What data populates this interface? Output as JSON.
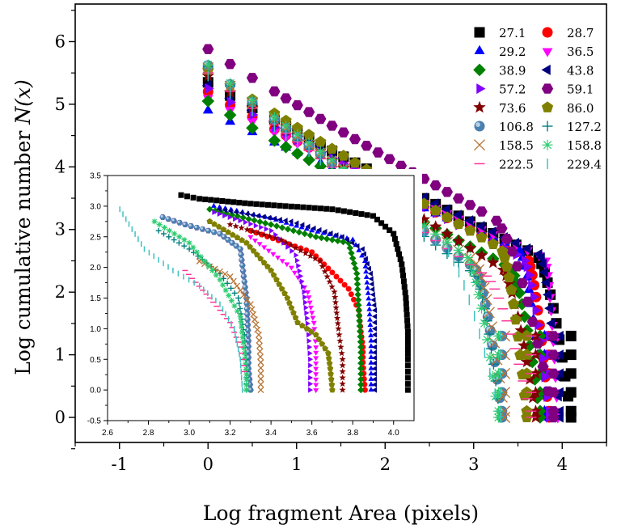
{
  "chart_data": [
    {
      "type": "scatter",
      "panel": "main",
      "title": "",
      "xlabel": "Log fragment Area (pixels)",
      "ylabel_prefix": "Log cumulative number ",
      "ylabel_math": "N(x)",
      "xlim": [
        -1.5,
        4.5
      ],
      "ylim": [
        -0.4,
        6.6
      ],
      "xticks": [
        -1,
        0,
        1,
        2,
        3,
        4
      ],
      "yticks": [
        0,
        1,
        2,
        3,
        4,
        5,
        6
      ],
      "xtick_labels": [
        "-1",
        "0",
        "1",
        "2",
        "3",
        "4"
      ],
      "ytick_labels": [
        "0",
        "1",
        "2",
        "3",
        "4",
        "5",
        "6"
      ],
      "grid": false,
      "legend_position": "top-right",
      "series": [
        {
          "name": "27.1",
          "marker": "square",
          "color": "#000000",
          "start_y": 5.35,
          "x_knee": 3.7,
          "y_knee": 2.6,
          "x_end": 4.1
        },
        {
          "name": "28.7",
          "marker": "circle",
          "color": "#ff0000",
          "start_y": 5.2,
          "x_knee": 3.6,
          "y_knee": 2.55,
          "x_end": 3.85
        },
        {
          "name": "29.2",
          "marker": "triangle-up",
          "color": "#0000ff",
          "start_y": 4.9,
          "x_knee": 3.5,
          "y_knee": 2.7,
          "x_end": 3.8
        },
        {
          "name": "36.5",
          "marker": "triangle-down",
          "color": "#ff00ff",
          "start_y": 5.1,
          "x_knee": 3.8,
          "y_knee": 2.55,
          "x_end": 3.95
        },
        {
          "name": "38.9",
          "marker": "diamond",
          "color": "#008000",
          "start_y": 5.05,
          "x_knee": 3.4,
          "y_knee": 2.4,
          "x_end": 3.75
        },
        {
          "name": "43.8",
          "marker": "triangle-left",
          "color": "#000080",
          "start_y": 5.3,
          "x_knee": 3.75,
          "y_knee": 2.6,
          "x_end": 3.98
        },
        {
          "name": "57.2",
          "marker": "triangle-right",
          "color": "#8000ff",
          "start_y": 5.25,
          "x_knee": 3.55,
          "y_knee": 2.55,
          "x_end": 3.85
        },
        {
          "name": "59.1",
          "marker": "hexagon",
          "color": "#800080",
          "start_y": 5.88,
          "x_knee": 3.2,
          "y_knee": 3.2,
          "x_end": 3.9
        },
        {
          "name": "73.6",
          "marker": "star",
          "color": "#800000",
          "start_y": 5.45,
          "x_knee": 3.3,
          "y_knee": 2.4,
          "x_end": 3.7
        },
        {
          "name": "86.0",
          "marker": "pentagon",
          "color": "#808000",
          "start_y": 5.55,
          "x_knee": 3.3,
          "y_knee": 2.7,
          "x_end": 3.6
        },
        {
          "name": "106.8",
          "marker": "sphere",
          "color": "#4a7fb0",
          "start_y": 5.62,
          "x_knee": 3.0,
          "y_knee": 2.4,
          "x_end": 3.32
        },
        {
          "name": "127.2",
          "marker": "plus",
          "color": "#008080",
          "start_y": 5.6,
          "x_knee": 3.0,
          "y_knee": 2.3,
          "x_end": 3.3
        },
        {
          "name": "158.5",
          "marker": "cross",
          "color": "#b87333",
          "start_y": 5.58,
          "x_knee": 3.0,
          "y_knee": 2.5,
          "x_end": 3.35
        },
        {
          "name": "158.8",
          "marker": "asterisk",
          "color": "#2ecc71",
          "start_y": 5.63,
          "x_knee": 2.9,
          "y_knee": 2.6,
          "x_end": 3.28
        },
        {
          "name": "222.5",
          "marker": "hline",
          "color": "#ff3399",
          "start_y": 5.5,
          "x_knee": 3.1,
          "y_knee": 2.3,
          "x_end": 3.65
        },
        {
          "name": "229.4",
          "marker": "vline",
          "color": "#40c0c0",
          "start_y": 5.45,
          "x_knee": 2.6,
          "y_knee": 2.8,
          "x_end": 3.3
        }
      ]
    },
    {
      "type": "scatter",
      "panel": "inset",
      "title": "",
      "xlabel": "",
      "ylabel": "",
      "xlim": [
        2.6,
        4.1
      ],
      "ylim": [
        -0.5,
        3.5
      ],
      "xticks": [
        2.6,
        2.8,
        3.0,
        3.2,
        3.4,
        3.6,
        3.8,
        4.0
      ],
      "yticks": [
        -0.5,
        0.0,
        0.5,
        1.0,
        1.5,
        2.0,
        2.5,
        3.0,
        3.5
      ],
      "xtick_labels": [
        "2.6",
        "2.8",
        "3.0",
        "3.2",
        "3.4",
        "3.6",
        "3.8",
        "4.0"
      ],
      "ytick_labels": [
        "-0.5",
        "0.0",
        "0.5",
        "1.0",
        "1.5",
        "2.0",
        "2.5",
        "3.0",
        "3.5"
      ],
      "grid": false,
      "series": [
        {
          "name": "27.1",
          "points": [
            [
              2.96,
              3.18
            ],
            [
              3.05,
              3.12
            ],
            [
              3.3,
              3.04
            ],
            [
              3.7,
              2.95
            ],
            [
              3.9,
              2.84
            ],
            [
              4.0,
              2.55
            ],
            [
              4.04,
              2.05
            ],
            [
              4.06,
              1.5
            ],
            [
              4.07,
              0.95
            ],
            [
              4.07,
              0.5
            ],
            [
              4.07,
              0.0
            ]
          ]
        },
        {
          "name": "28.7",
          "points": [
            [
              3.3,
              2.6
            ],
            [
              3.6,
              2.25
            ],
            [
              3.78,
              1.65
            ],
            [
              3.83,
              1.3
            ],
            [
              3.84,
              0.95
            ],
            [
              3.85,
              0.7
            ],
            [
              3.85,
              0.45
            ],
            [
              3.86,
              0.0
            ]
          ]
        },
        {
          "name": "29.2",
          "points": [
            [
              3.12,
              3.0
            ],
            [
              3.4,
              2.8
            ],
            [
              3.6,
              2.6
            ],
            [
              3.8,
              2.45
            ],
            [
              3.86,
              2.1
            ],
            [
              3.88,
              1.4
            ],
            [
              3.89,
              0.8
            ],
            [
              3.89,
              0.35
            ],
            [
              3.89,
              0.0
            ]
          ]
        },
        {
          "name": "36.5",
          "points": [
            [
              3.3,
              2.5
            ],
            [
              3.5,
              2.0
            ],
            [
              3.58,
              1.6
            ],
            [
              3.61,
              1.1
            ],
            [
              3.62,
              0.7
            ],
            [
              3.62,
              0.35
            ],
            [
              3.62,
              0.0
            ]
          ]
        },
        {
          "name": "38.9",
          "points": [
            [
              3.1,
              2.95
            ],
            [
              3.4,
              2.7
            ],
            [
              3.62,
              2.5
            ],
            [
              3.78,
              2.4
            ],
            [
              3.82,
              1.9
            ],
            [
              3.83,
              1.3
            ],
            [
              3.84,
              0.7
            ],
            [
              3.84,
              0.35
            ],
            [
              3.84,
              0.0
            ]
          ]
        },
        {
          "name": "43.8",
          "points": [
            [
              3.15,
              2.95
            ],
            [
              3.5,
              2.75
            ],
            [
              3.75,
              2.5
            ],
            [
              3.85,
              2.3
            ],
            [
              3.89,
              1.9
            ],
            [
              3.91,
              1.3
            ],
            [
              3.91,
              0.7
            ],
            [
              3.91,
              0.0
            ]
          ]
        },
        {
          "name": "57.2",
          "points": [
            [
              3.12,
              2.9
            ],
            [
              3.4,
              2.6
            ],
            [
              3.52,
              2.2
            ],
            [
              3.56,
              1.6
            ],
            [
              3.58,
              1.0
            ],
            [
              3.59,
              0.5
            ],
            [
              3.59,
              0.0
            ]
          ]
        },
        {
          "name": "59.1",
          "points": [
            [
              2.87,
              2.82
            ],
            [
              2.98,
              2.7
            ],
            [
              3.15,
              2.55
            ],
            [
              3.25,
              2.3
            ],
            [
              3.28,
              1.5
            ],
            [
              3.29,
              0.8
            ],
            [
              3.29,
              0.35
            ],
            [
              3.3,
              0.0
            ]
          ]
        },
        {
          "name": "73.6",
          "points": [
            [
              3.2,
              2.7
            ],
            [
              3.45,
              2.45
            ],
            [
              3.64,
              2.1
            ],
            [
              3.71,
              1.6
            ],
            [
              3.73,
              1.0
            ],
            [
              3.75,
              0.5
            ],
            [
              3.75,
              0.0
            ]
          ]
        },
        {
          "name": "86.0",
          "points": [
            [
              3.1,
              2.75
            ],
            [
              3.28,
              2.4
            ],
            [
              3.4,
              1.95
            ],
            [
              3.48,
              1.5
            ],
            [
              3.53,
              1.1
            ],
            [
              3.62,
              0.9
            ],
            [
              3.68,
              0.6
            ],
            [
              3.69,
              0.35
            ],
            [
              3.7,
              0.0
            ]
          ]
        },
        {
          "name": "106.8",
          "points": [
            [
              2.87,
              2.82
            ],
            [
              2.98,
              2.7
            ],
            [
              3.15,
              2.55
            ],
            [
              3.25,
              2.3
            ],
            [
              3.28,
              1.5
            ],
            [
              3.29,
              0.8
            ],
            [
              3.29,
              0.35
            ],
            [
              3.3,
              0.0
            ]
          ]
        },
        {
          "name": "127.2",
          "points": [
            [
              2.85,
              2.6
            ],
            [
              3.0,
              2.3
            ],
            [
              3.15,
              1.9
            ],
            [
              3.24,
              1.5
            ],
            [
              3.27,
              0.9
            ],
            [
              3.28,
              0.4
            ],
            [
              3.28,
              0.0
            ]
          ]
        },
        {
          "name": "158.5",
          "points": [
            [
              3.05,
              2.1
            ],
            [
              3.2,
              1.85
            ],
            [
              3.3,
              1.4
            ],
            [
              3.34,
              0.9
            ],
            [
              3.35,
              0.45
            ],
            [
              3.35,
              0.0
            ]
          ]
        },
        {
          "name": "158.8",
          "points": [
            [
              2.83,
              2.75
            ],
            [
              3.0,
              2.4
            ],
            [
              3.15,
              1.8
            ],
            [
              3.25,
              1.2
            ],
            [
              3.27,
              0.6
            ],
            [
              3.28,
              0.25
            ],
            [
              3.28,
              0.0
            ]
          ]
        },
        {
          "name": "222.5",
          "points": [
            [
              2.98,
              1.95
            ],
            [
              3.1,
              1.5
            ],
            [
              3.2,
              1.1
            ],
            [
              3.25,
              0.7
            ],
            [
              3.27,
              0.3
            ]
          ]
        },
        {
          "name": "229.4",
          "points": [
            [
              2.66,
              2.95
            ],
            [
              2.78,
              2.3
            ],
            [
              2.92,
              1.95
            ],
            [
              3.05,
              1.7
            ],
            [
              3.15,
              1.4
            ],
            [
              3.22,
              1.0
            ],
            [
              3.25,
              0.5
            ],
            [
              3.26,
              0.0
            ]
          ]
        }
      ]
    }
  ]
}
